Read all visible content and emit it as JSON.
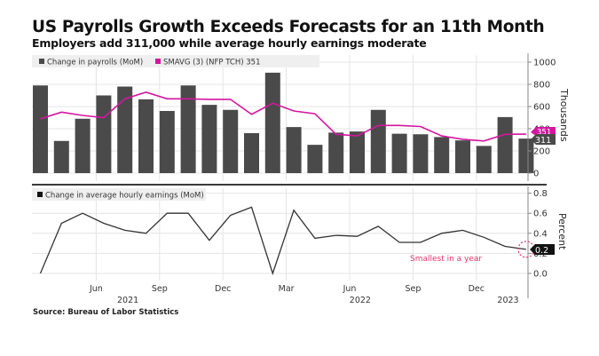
{
  "title": "US Payrolls Growth Exceeds Forecasts for an 11th Month",
  "subtitle": "Employers add 311,000 while average hourly earnings moderate",
  "source": "Source: Bureau of Labor Statistics",
  "chart_data": [
    {
      "type": "bar",
      "panel": "top",
      "categories": [
        "2021-03",
        "2021-04",
        "2021-05",
        "2021-06",
        "2021-07",
        "2021-08",
        "2021-09",
        "2021-10",
        "2021-11",
        "2021-12",
        "2022-01",
        "2022-02",
        "2022-03",
        "2022-04",
        "2022-05",
        "2022-06",
        "2022-07",
        "2022-08",
        "2022-09",
        "2022-10",
        "2022-11",
        "2022-12",
        "2023-01",
        "2023-02"
      ],
      "series": [
        {
          "name": "Change in payrolls (MoM)",
          "type": "bar",
          "color": "#4a4a4a",
          "values": [
            790,
            290,
            490,
            700,
            780,
            665,
            560,
            790,
            615,
            570,
            360,
            905,
            415,
            255,
            365,
            375,
            570,
            355,
            350,
            325,
            295,
            245,
            505,
            311
          ],
          "last_value_label": "311"
        },
        {
          "name": "SMAVG (3) (NFP TCH) 351",
          "type": "line",
          "color": "#d4169e",
          "values": [
            490,
            550,
            520,
            500,
            670,
            730,
            670,
            670,
            665,
            665,
            530,
            630,
            560,
            535,
            350,
            335,
            430,
            430,
            420,
            335,
            305,
            290,
            350,
            351
          ],
          "last_value_label": "351"
        }
      ],
      "ylabel": "Thousands",
      "ylim": [
        -50,
        1050
      ],
      "yticks": [
        0,
        200,
        400,
        600,
        800,
        1000
      ],
      "grid": true,
      "legend": "top-left"
    },
    {
      "type": "line",
      "panel": "bottom",
      "categories": [
        "2021-03",
        "2021-04",
        "2021-05",
        "2021-06",
        "2021-07",
        "2021-08",
        "2021-09",
        "2021-10",
        "2021-11",
        "2021-12",
        "2022-01",
        "2022-02",
        "2022-03",
        "2022-04",
        "2022-05",
        "2022-06",
        "2022-07",
        "2022-08",
        "2022-09",
        "2022-10",
        "2022-11",
        "2022-12",
        "2023-01",
        "2023-02"
      ],
      "series": [
        {
          "name": "Change in average hourly earnings (MoM)",
          "type": "line",
          "color": "#333333",
          "values": [
            0.0,
            0.5,
            0.6,
            0.5,
            0.43,
            0.4,
            0.6,
            0.6,
            0.33,
            0.58,
            0.66,
            0.0,
            0.63,
            0.35,
            0.38,
            0.37,
            0.47,
            0.31,
            0.31,
            0.4,
            0.43,
            0.36,
            0.27,
            0.24
          ],
          "last_value_label": "0.2"
        }
      ],
      "ylabel": "Percent",
      "ylim": [
        -0.05,
        0.85
      ],
      "yticks": [
        "0.0",
        "0.2",
        "0.4",
        "0.6",
        "0.8"
      ],
      "ytick_values": [
        0.0,
        0.2,
        0.4,
        0.6,
        0.8
      ],
      "annotation": {
        "text": "Smallest in a year",
        "color": "#e8336b",
        "target_index": 23
      },
      "grid": true,
      "legend": "top-left"
    }
  ],
  "x_axis": {
    "month_ticks": [
      {
        "label": "Jun",
        "index": 3
      },
      {
        "label": "Sep",
        "index": 6
      },
      {
        "label": "Dec",
        "index": 9
      },
      {
        "label": "Mar",
        "index": 12
      },
      {
        "label": "Jun",
        "index": 15
      },
      {
        "label": "Sep",
        "index": 18
      },
      {
        "label": "Dec",
        "index": 21
      }
    ],
    "year_labels": [
      {
        "label": "2021",
        "index": 4.5
      },
      {
        "label": "2022",
        "index": 15.5
      },
      {
        "label": "2023",
        "index": 22.5
      }
    ]
  }
}
